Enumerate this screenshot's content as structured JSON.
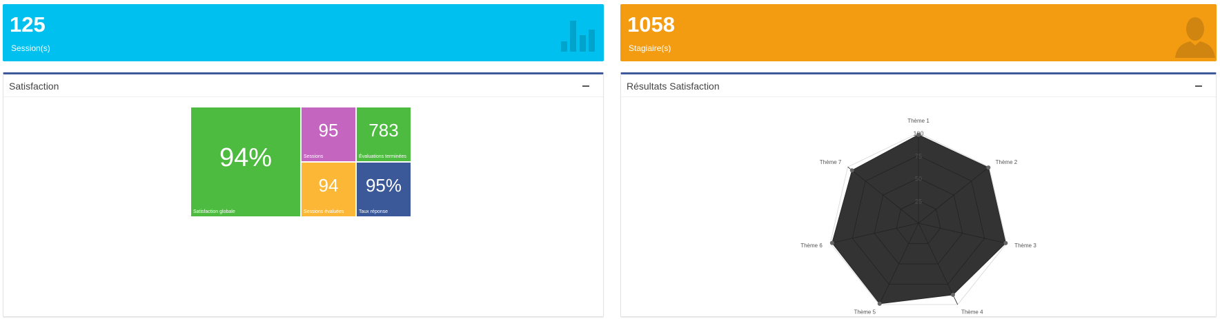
{
  "cards": [
    {
      "value": "125",
      "label": "Session(s)",
      "icon": "bar-chart-icon",
      "color": "#00c0ef"
    },
    {
      "value": "1058",
      "label": "Stagiaire(s)",
      "icon": "user-icon",
      "color": "#f39c12"
    }
  ],
  "satisfaction": {
    "title": "Satisfaction",
    "tiles": [
      {
        "value": "94%",
        "label": "Satisfaction globale",
        "color": "#4cbb3f"
      },
      {
        "value": "95",
        "label": "Sessions",
        "color": "#c466c0"
      },
      {
        "value": "783",
        "label": "Évaluations terminées",
        "color": "#4cbb3f"
      },
      {
        "value": "94",
        "label": "Sessions évaluées",
        "color": "#fbb735"
      },
      {
        "value": "95%",
        "label": "Taux réponse",
        "color": "#3b5998"
      }
    ]
  },
  "results": {
    "title": "Résultats Satisfaction",
    "chart_data": {
      "type": "radar",
      "categories": [
        "Thème 1",
        "Thème 2",
        "Thème 3",
        "Thème 4",
        "Thème 5",
        "Thème 6",
        "Thème 7"
      ],
      "values": [
        98,
        99,
        99,
        88,
        99,
        98,
        94
      ],
      "rlim": [
        0,
        100
      ],
      "ticks": [
        "25",
        "50",
        "75",
        "100"
      ],
      "fill_color": "#333333"
    }
  }
}
